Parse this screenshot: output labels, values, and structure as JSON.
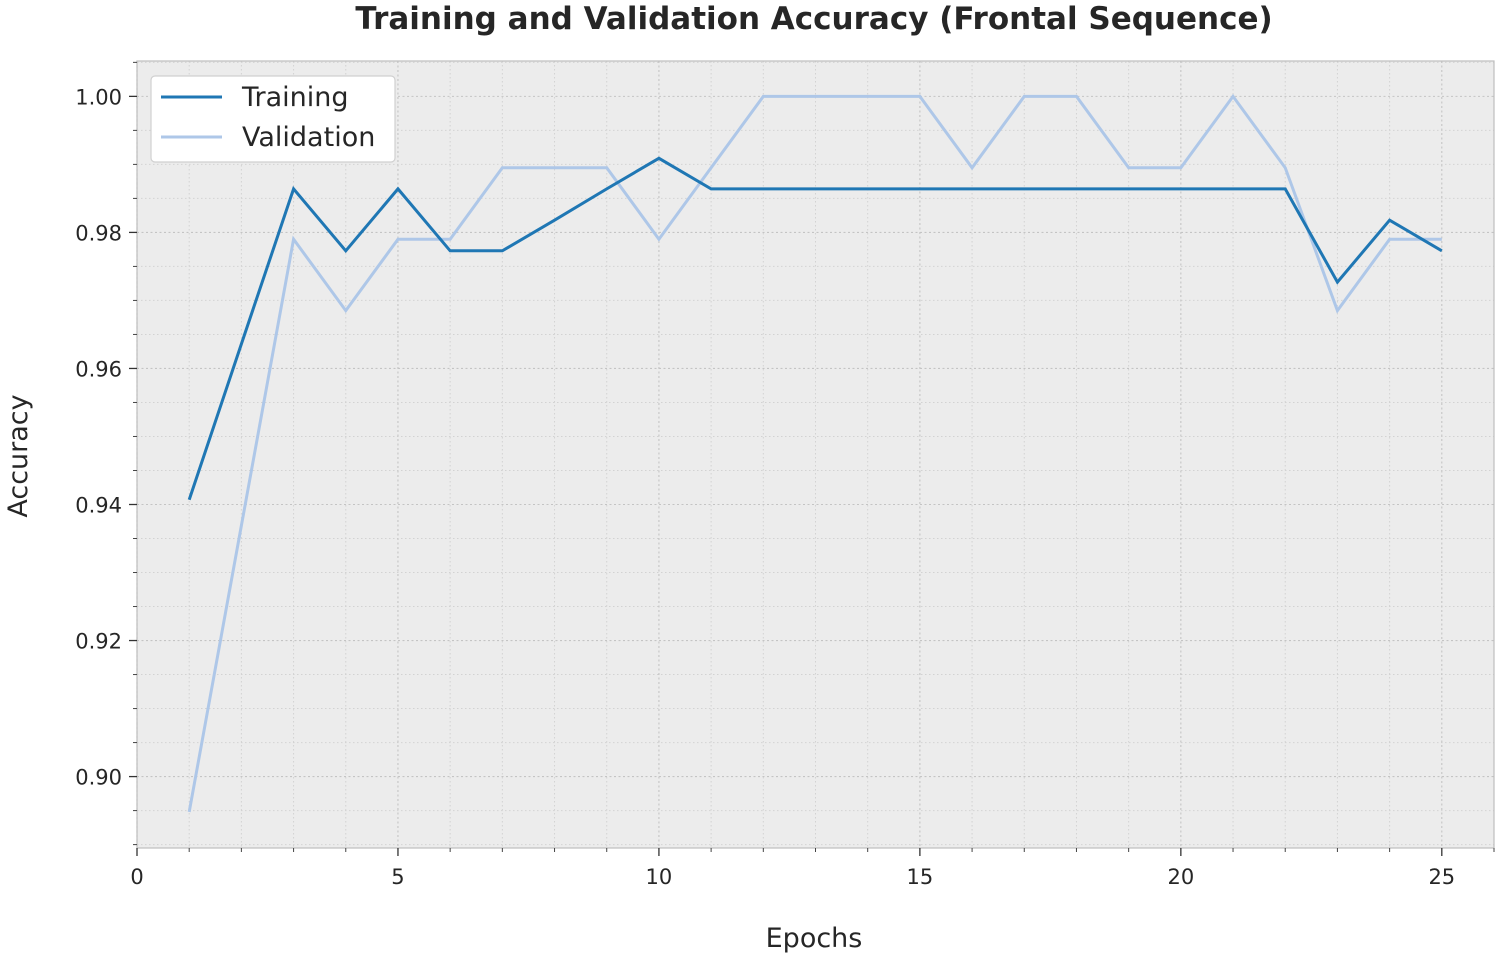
{
  "chart_data": {
    "type": "line",
    "title": "Training and Validation Accuracy (Frontal Sequence)",
    "xlabel": "Epochs",
    "ylabel": "Accuracy",
    "xlim": [
      0,
      26
    ],
    "ylim": [
      0.8895,
      1.0052
    ],
    "xticks": [
      0,
      5,
      10,
      15,
      20,
      25
    ],
    "yticks": [
      0.9,
      0.92,
      0.94,
      0.96,
      0.98,
      1.0
    ],
    "ytick_labels": [
      "0.90",
      "0.92",
      "0.94",
      "0.96",
      "0.98",
      "1.00"
    ],
    "grid": true,
    "minor_grid": true,
    "legend_position": "top-left",
    "x": [
      1,
      2,
      3,
      4,
      5,
      6,
      7,
      8,
      9,
      10,
      11,
      12,
      13,
      14,
      15,
      16,
      17,
      18,
      19,
      20,
      21,
      22,
      23,
      24,
      25
    ],
    "series": [
      {
        "name": "Training",
        "color": "#1f77b4",
        "values": [
          0.9407,
          0.9636,
          0.9864,
          0.9773,
          0.9864,
          0.9773,
          0.9773,
          0.9818,
          0.9864,
          0.9909,
          0.9864,
          0.9864,
          0.9864,
          0.9864,
          0.9864,
          0.9864,
          0.9864,
          0.9864,
          0.9864,
          0.9864,
          0.9864,
          0.9864,
          0.9727,
          0.9818,
          0.9773
        ]
      },
      {
        "name": "Validation",
        "color": "#aec7e8",
        "values": [
          0.8948,
          0.9369,
          0.979,
          0.9685,
          0.979,
          0.979,
          0.9895,
          0.9895,
          0.9895,
          0.979,
          0.9895,
          1.0,
          1.0,
          1.0,
          1.0,
          0.9895,
          1.0,
          1.0,
          0.9895,
          0.9895,
          1.0,
          0.9895,
          0.9685,
          0.979,
          0.979
        ]
      }
    ]
  }
}
